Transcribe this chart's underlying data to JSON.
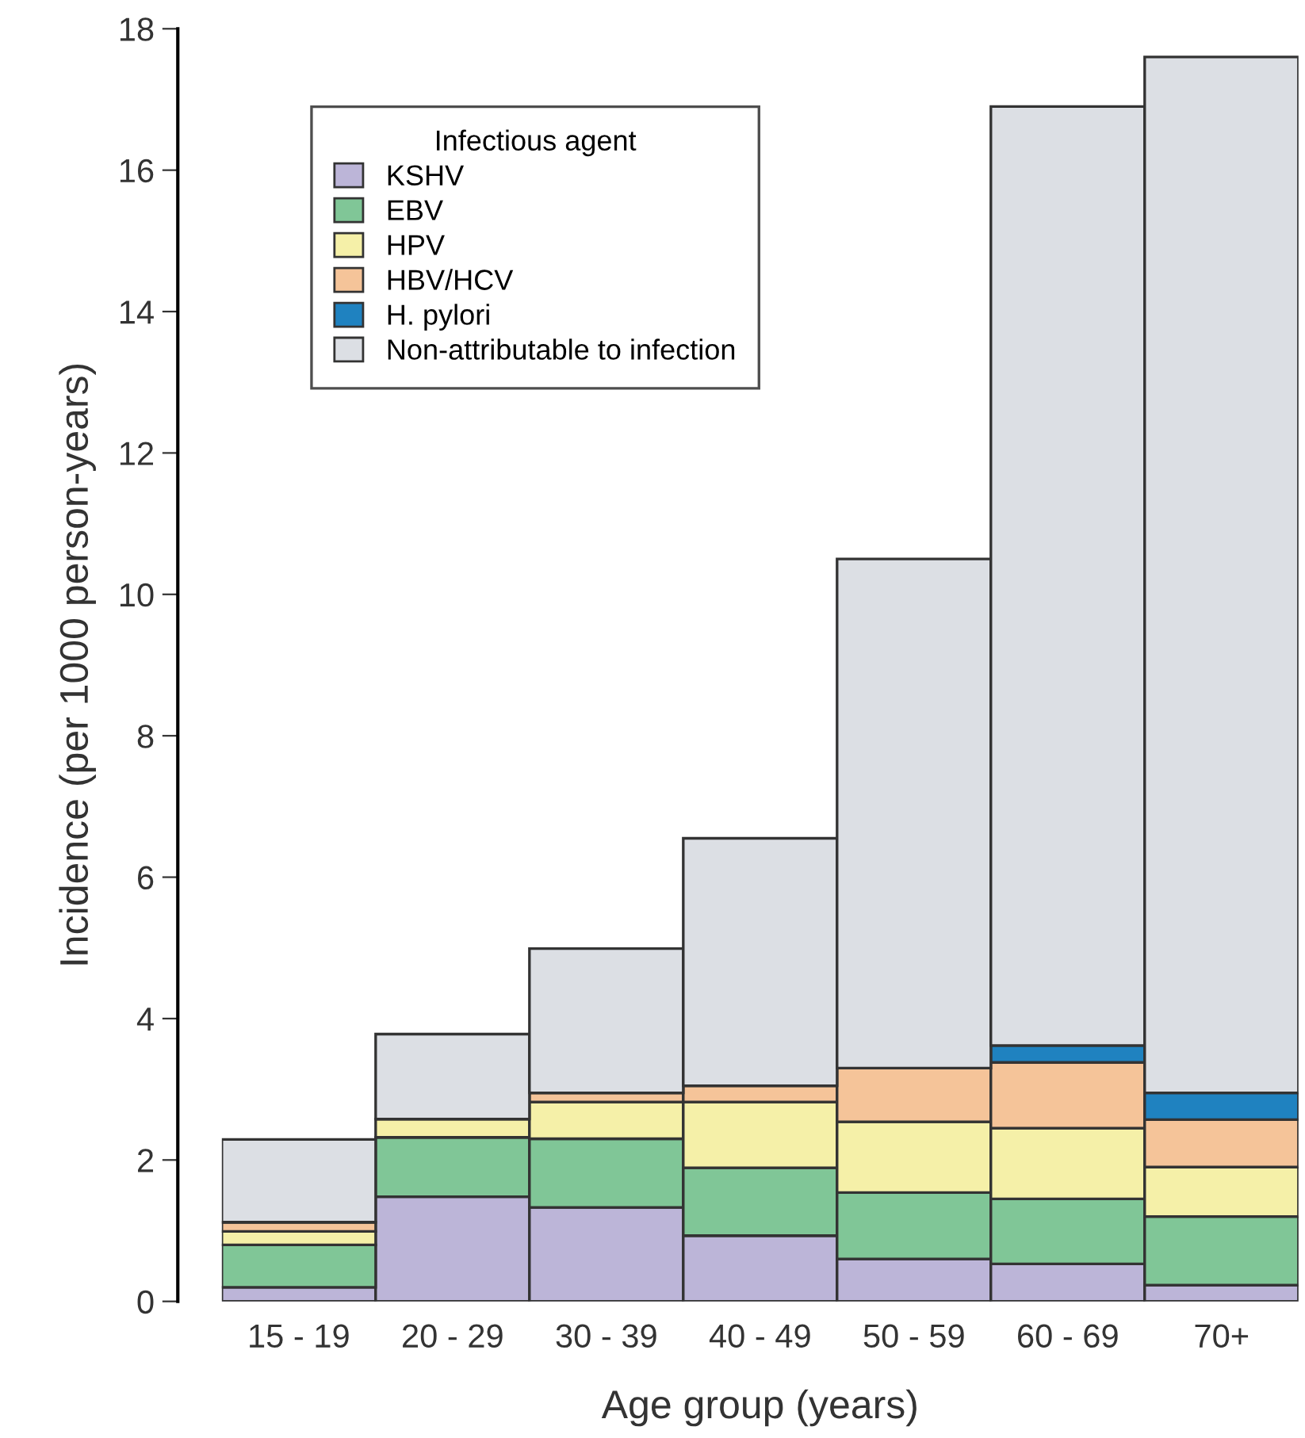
{
  "chart_data": {
    "type": "bar",
    "stacked": true,
    "xlabel": "Age group (years)",
    "ylabel": "Incidence (per 1000 person-years)",
    "categories": [
      "15 - 19",
      "20 - 29",
      "30 - 39",
      "40 - 49",
      "50 - 59",
      "60 - 69",
      "70+"
    ],
    "series": [
      {
        "name": "KSHV",
        "color": "#bcb5d8",
        "values": [
          0.2,
          1.48,
          1.33,
          0.93,
          0.6,
          0.53,
          0.23
        ]
      },
      {
        "name": "EBV",
        "color": "#80c697",
        "values": [
          0.6,
          0.84,
          0.97,
          0.96,
          0.94,
          0.92,
          0.97
        ]
      },
      {
        "name": "HPV",
        "color": "#f5f0a8",
        "values": [
          0.19,
          0.26,
          0.52,
          0.93,
          1.0,
          1.0,
          0.7
        ]
      },
      {
        "name": "HBV/HCV",
        "color": "#f5c499",
        "values": [
          0.13,
          0,
          0.13,
          0.23,
          0.76,
          0.93,
          0.67
        ]
      },
      {
        "name": "H. pylori",
        "color": "#1f82c0",
        "values": [
          0,
          0,
          0,
          0,
          0,
          0.24,
          0.38
        ]
      },
      {
        "name": "Non-attributable to infection",
        "color": "#dcdfe4",
        "values": [
          1.17,
          1.2,
          2.04,
          3.5,
          7.2,
          13.28,
          14.65
        ]
      }
    ],
    "legend_title": "Infectious agent",
    "legend": "top left",
    "ylim": [
      0,
      18
    ],
    "yticks": [
      0,
      2,
      4,
      6,
      8,
      10,
      12,
      14,
      16,
      18
    ],
    "grid": false
  }
}
